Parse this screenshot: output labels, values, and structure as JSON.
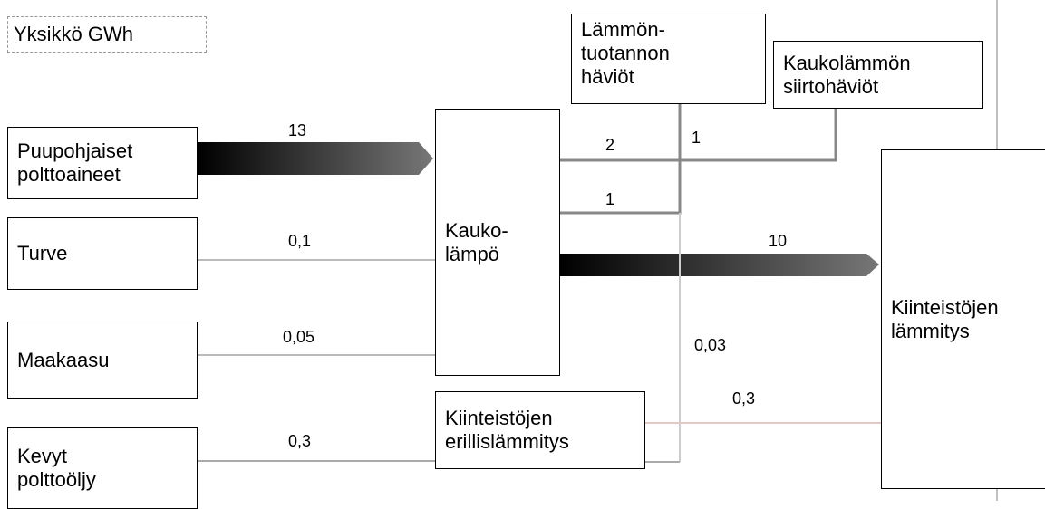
{
  "unit": "Yksikkö GWh",
  "nodes": [
    {
      "label": "Puupohjaiset\npolttoaineet"
    },
    {
      "label": "Turve"
    },
    {
      "label": "Maakaasu"
    },
    {
      "label": "Kevyt\npolttoöljy"
    },
    {
      "label": "Kauko-\nlämpö"
    },
    {
      "label": "Kiinteistöjen\nerillislämmitys"
    },
    {
      "label": "Lämmön-\ntuotannon\nhäviöt"
    },
    {
      "label": "Kaukolämmön\nsiirtohäviöt"
    },
    {
      "label": "Kiinteistöjen\nlämmitys"
    }
  ],
  "flows": [
    {
      "label": "13"
    },
    {
      "label": "0,1"
    },
    {
      "label": "0,05"
    },
    {
      "label": "0,3"
    },
    {
      "label": "2"
    },
    {
      "label": "1"
    },
    {
      "label": "1"
    },
    {
      "label": "10"
    },
    {
      "label": "0,03"
    },
    {
      "label": "0,3"
    }
  ]
}
